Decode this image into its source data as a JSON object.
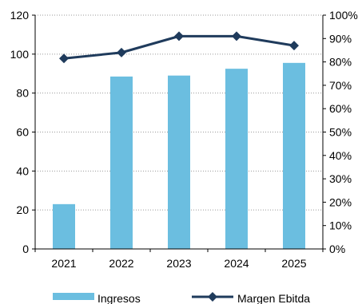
{
  "chart_data": {
    "type": "bar",
    "categories": [
      "2021",
      "2022",
      "2023",
      "2024",
      "2025"
    ],
    "series": [
      {
        "name": "Ingresos",
        "type": "bar",
        "axis": "left",
        "color": "#6BBEE0",
        "values": [
          23,
          88.5,
          89,
          92.5,
          95.5
        ]
      },
      {
        "name": "Margen Ebitda",
        "type": "line",
        "axis": "right",
        "color": "#1F3B5C",
        "marker": "diamond",
        "values": [
          81.5,
          84,
          91,
          91,
          87
        ]
      }
    ],
    "ylim_left": [
      0,
      120
    ],
    "yticks_left": [
      "0",
      "20",
      "40",
      "60",
      "80",
      "100",
      "120"
    ],
    "ylim_right": [
      0,
      100
    ],
    "yticks_right": [
      "0%",
      "10%",
      "20%",
      "30%",
      "40%",
      "50%",
      "60%",
      "70%",
      "80%",
      "90%",
      "100%"
    ],
    "grid": "horizontal-dotted",
    "legend": "bottom-center"
  }
}
